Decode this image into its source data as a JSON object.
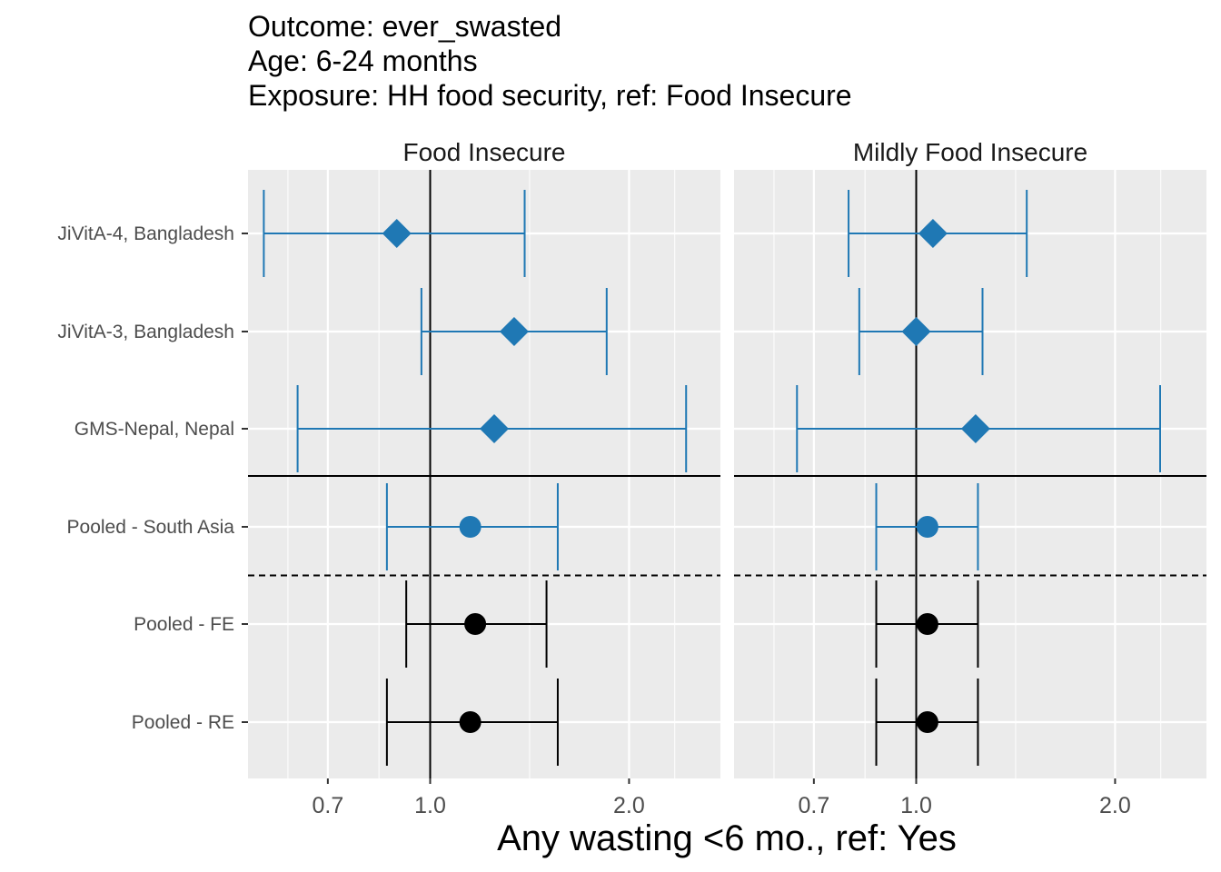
{
  "chart_data": {
    "type": "forest",
    "title_lines": [
      "Outcome: ever_swasted",
      "Age: 6-24 months",
      "Exposure: HH food security, ref: Food Insecure"
    ],
    "xlabel": "Any wasting  <6 mo., ref: Yes",
    "x_scale": "log",
    "xlim": [
      0.53,
      2.75
    ],
    "x_ticks": [
      0.7,
      1.0,
      2.0
    ],
    "x_tick_labels": [
      "0.7",
      "1.0",
      "2.0"
    ],
    "reference_line": 1.0,
    "row_labels": [
      "JiVitA-4, Bangladesh",
      "JiVitA-3, Bangladesh",
      "GMS-Nepal, Nepal",
      "Pooled - South Asia",
      "Pooled - FE",
      "Pooled - RE"
    ],
    "grid": true,
    "colors": {
      "study": "#1f78b4",
      "pooled": "#000000",
      "panel_bg": "#ebebeb",
      "grid": "#ffffff"
    },
    "panels": [
      {
        "name": "Food Insecure",
        "rows": [
          {
            "label": "JiVitA-4, Bangladesh",
            "est": 0.89,
            "lo": 0.56,
            "hi": 1.39,
            "shape": "diamond"
          },
          {
            "label": "JiVitA-3, Bangladesh",
            "est": 1.34,
            "lo": 0.97,
            "hi": 1.85,
            "shape": "diamond"
          },
          {
            "label": "GMS-Nepal, Nepal",
            "est": 1.25,
            "lo": 0.63,
            "hi": 2.44,
            "shape": "diamond"
          },
          {
            "label": "Pooled - South Asia",
            "est": 1.15,
            "lo": 0.86,
            "hi": 1.56,
            "shape": "circle"
          },
          {
            "label": "Pooled - FE",
            "est": 1.17,
            "lo": 0.92,
            "hi": 1.5,
            "shape": "circle"
          },
          {
            "label": "Pooled - RE",
            "est": 1.15,
            "lo": 0.86,
            "hi": 1.56,
            "shape": "circle"
          }
        ]
      },
      {
        "name": "Mildly Food Insecure",
        "rows": [
          {
            "label": "JiVitA-4, Bangladesh",
            "est": 1.06,
            "lo": 0.79,
            "hi": 1.47,
            "shape": "diamond"
          },
          {
            "label": "JiVitA-3, Bangladesh",
            "est": 1.0,
            "lo": 0.82,
            "hi": 1.26,
            "shape": "diamond"
          },
          {
            "label": "GMS-Nepal, Nepal",
            "est": 1.23,
            "lo": 0.66,
            "hi": 2.34,
            "shape": "diamond"
          },
          {
            "label": "Pooled - South Asia",
            "est": 1.04,
            "lo": 0.87,
            "hi": 1.24,
            "shape": "circle"
          },
          {
            "label": "Pooled - FE",
            "est": 1.04,
            "lo": 0.87,
            "hi": 1.24,
            "shape": "circle"
          },
          {
            "label": "Pooled - RE",
            "est": 1.04,
            "lo": 0.87,
            "hi": 1.24,
            "shape": "circle"
          }
        ]
      }
    ]
  }
}
